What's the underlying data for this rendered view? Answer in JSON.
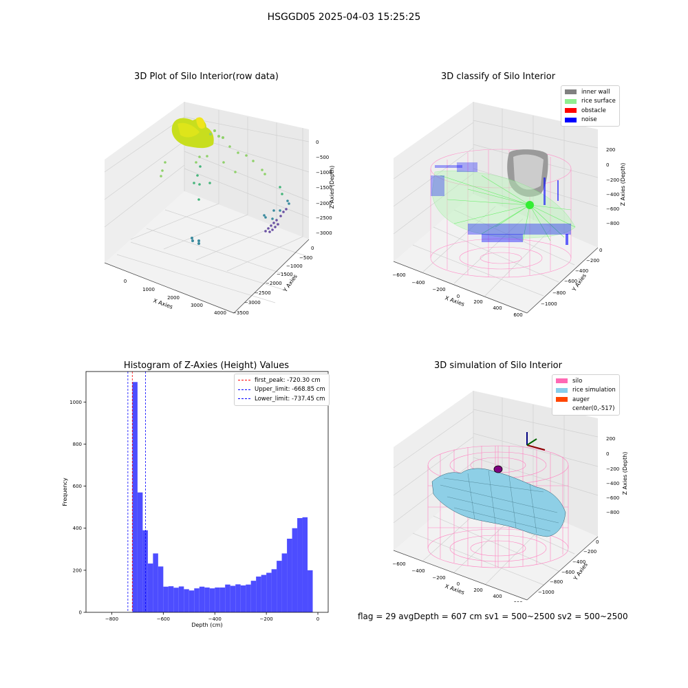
{
  "suptitle": "HSGGD05 2025-04-03 15:25:25",
  "status_line": "flag = 29  avgDepth = 607 cm  sv1 = 500~2500  sv2 = 500~2500",
  "chart_data": [
    {
      "type": "scatter",
      "title": "3D Plot of Silo Interior(row data)",
      "xlabel": "X Axies",
      "ylabel": "Y Axies",
      "zlabel": "Z Axies (Depth)",
      "xticks": [
        "0",
        "1000",
        "2000",
        "3000",
        "4000"
      ],
      "yticks": [
        "0",
        "−500",
        "−1000",
        "−1500",
        "−2000",
        "−2500",
        "−3000",
        "−3500"
      ],
      "zticks": [
        "0",
        "−500",
        "−1000",
        "−1500",
        "−2000",
        "−2500",
        "−3000"
      ],
      "xlim": [
        -500,
        4300
      ],
      "ylim": [
        -3500,
        0
      ],
      "zlim": [
        -3100,
        100
      ],
      "colormap": "viridis",
      "grid": true
    },
    {
      "type": "scatter",
      "title": "3D classify of Silo Interior",
      "xlabel": "X Axies",
      "ylabel": "Y Axies",
      "zlabel": "Z Axies (Depth)",
      "xticks": [
        "−600",
        "−400",
        "−200",
        "0",
        "200",
        "400",
        "600"
      ],
      "yticks": [
        "0",
        "−200",
        "−400",
        "−600",
        "−800",
        "−1000"
      ],
      "zticks": [
        "200",
        "0",
        "−200",
        "−400",
        "−600",
        "−800"
      ],
      "legend": [
        {
          "label": "inner wall",
          "color": "#808080"
        },
        {
          "label": "rice surface",
          "color": "#90ee90"
        },
        {
          "label": "obstacle",
          "color": "#ff0000"
        },
        {
          "label": "noise",
          "color": "#0000ff"
        }
      ],
      "legend_position": "top-right",
      "grid": true
    },
    {
      "type": "bar",
      "title": "Histogram of Z-Axies (Height) Values",
      "xlabel": "Depth (cm)",
      "ylabel": "Frequency",
      "xlim": [
        -900,
        40
      ],
      "ylim": [
        0,
        1145
      ],
      "xticks": [
        "−800",
        "−600",
        "−400",
        "−200",
        "0"
      ],
      "yticks": [
        "0",
        "200",
        "400",
        "600",
        "800",
        "1000"
      ],
      "bin_width": 20,
      "bins": [
        {
          "x0": -720,
          "count": 1095
        },
        {
          "x0": -700,
          "count": 570
        },
        {
          "x0": -680,
          "count": 390
        },
        {
          "x0": -660,
          "count": 232
        },
        {
          "x0": -640,
          "count": 280
        },
        {
          "x0": -620,
          "count": 218
        },
        {
          "x0": -600,
          "count": 122
        },
        {
          "x0": -580,
          "count": 124
        },
        {
          "x0": -560,
          "count": 117
        },
        {
          "x0": -540,
          "count": 123
        },
        {
          "x0": -520,
          "count": 110
        },
        {
          "x0": -500,
          "count": 104
        },
        {
          "x0": -480,
          "count": 114
        },
        {
          "x0": -460,
          "count": 122
        },
        {
          "x0": -440,
          "count": 118
        },
        {
          "x0": -420,
          "count": 114
        },
        {
          "x0": -400,
          "count": 118
        },
        {
          "x0": -380,
          "count": 118
        },
        {
          "x0": -360,
          "count": 132
        },
        {
          "x0": -340,
          "count": 126
        },
        {
          "x0": -320,
          "count": 133
        },
        {
          "x0": -300,
          "count": 128
        },
        {
          "x0": -280,
          "count": 132
        },
        {
          "x0": -260,
          "count": 150
        },
        {
          "x0": -240,
          "count": 170
        },
        {
          "x0": -220,
          "count": 178
        },
        {
          "x0": -200,
          "count": 188
        },
        {
          "x0": -180,
          "count": 205
        },
        {
          "x0": -160,
          "count": 245
        },
        {
          "x0": -140,
          "count": 280
        },
        {
          "x0": -120,
          "count": 350
        },
        {
          "x0": -100,
          "count": 400
        },
        {
          "x0": -80,
          "count": 448
        },
        {
          "x0": -60,
          "count": 452
        },
        {
          "x0": -40,
          "count": 200
        }
      ],
      "bar_color": "#4d4dff",
      "vlines": [
        {
          "label": "first_peak: -720.30 cm",
          "value": -720.3,
          "color": "#ff0000"
        },
        {
          "label": "Upper_limit: -668.85 cm",
          "value": -668.85,
          "color": "#0000ff"
        },
        {
          "label": "Lower_limit: -737.45 cm",
          "value": -737.45,
          "color": "#0000ff"
        }
      ],
      "legend_position": "top-right",
      "grid": false
    },
    {
      "type": "surface",
      "title": "3D simulation of Silo Interior",
      "xlabel": "X Axies",
      "ylabel": "Y Axies",
      "zlabel": "Z Axies (Depth)",
      "xticks": [
        "−600",
        "−400",
        "−200",
        "0",
        "200",
        "400",
        "600"
      ],
      "yticks": [
        "0",
        "−200",
        "−400",
        "−600",
        "−800",
        "−1000"
      ],
      "zticks": [
        "200",
        "0",
        "−200",
        "−400",
        "−600",
        "−800"
      ],
      "legend": [
        {
          "label": "silo",
          "color": "#ff69b4"
        },
        {
          "label": "rice simulation",
          "color": "#87ceeb"
        },
        {
          "label": "auger",
          "color": "#ff4500"
        },
        {
          "label": "center(0,-517)",
          "color": ""
        }
      ],
      "legend_position": "top-right",
      "grid": true
    }
  ]
}
